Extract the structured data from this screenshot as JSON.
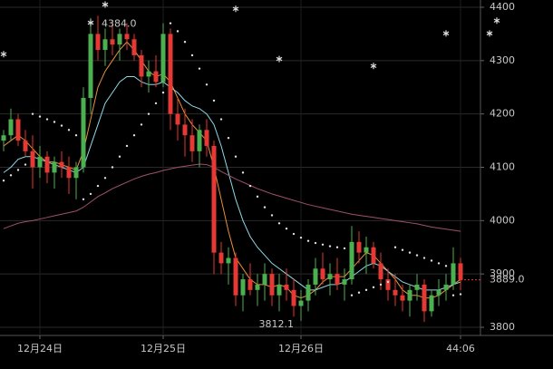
{
  "chart_data": {
    "type": "candlestick",
    "categories": [
      null,
      null,
      null,
      null,
      null,
      "12月24日",
      null,
      null,
      null,
      null,
      null,
      null,
      null,
      null,
      null,
      null,
      null,
      null,
      null,
      null,
      null,
      null,
      "12月25日",
      null,
      null,
      null,
      null,
      null,
      null,
      null,
      null,
      null,
      null,
      null,
      null,
      null,
      null,
      null,
      null,
      null,
      null,
      "12月26日",
      null,
      null,
      null,
      null,
      null,
      null,
      null,
      null,
      null,
      null,
      null,
      null,
      null,
      null,
      null,
      null,
      null,
      null,
      null,
      null,
      null,
      "44:06"
    ],
    "open": [
      4150,
      4160,
      4190,
      4150,
      4130,
      4100,
      4120,
      4090,
      4110,
      4100,
      4080,
      4100,
      4230,
      4350,
      4320,
      4340,
      4330,
      4350,
      4340,
      4310,
      4270,
      4280,
      4260,
      4350,
      4200,
      4180,
      4160,
      4130,
      4170,
      4140,
      3940,
      3920,
      3930,
      3860,
      3890,
      3870,
      3880,
      3900,
      3860,
      3880,
      3870,
      3840,
      3850,
      3880,
      3910,
      3890,
      3900,
      3880,
      3890,
      3960,
      3940,
      3950,
      3920,
      3890,
      3870,
      3860,
      3850,
      3870,
      3880,
      3830,
      3860,
      3870,
      3880,
      3920
    ],
    "high": [
      4170,
      4210,
      4200,
      4170,
      4160,
      4140,
      4130,
      4120,
      4130,
      4120,
      4110,
      4250,
      4380,
      4384,
      4360,
      4375,
      4360,
      4370,
      4350,
      4320,
      4300,
      4310,
      4370,
      4360,
      4230,
      4210,
      4190,
      4180,
      4190,
      4150,
      3960,
      3950,
      3940,
      3900,
      3920,
      3900,
      3920,
      3910,
      3900,
      3910,
      3890,
      3870,
      3890,
      3930,
      3940,
      3920,
      3930,
      3910,
      3990,
      3980,
      3970,
      3960,
      3940,
      3910,
      3900,
      3880,
      3880,
      3900,
      3890,
      3870,
      3890,
      3900,
      3950,
      3930
    ],
    "low": [
      4130,
      4150,
      4140,
      4120,
      4060,
      4080,
      4070,
      4060,
      4080,
      4050,
      4040,
      4090,
      4200,
      4300,
      4290,
      4310,
      4300,
      4320,
      4300,
      4250,
      4240,
      4250,
      4250,
      4170,
      4150,
      4120,
      4110,
      4100,
      4120,
      3900,
      3900,
      3880,
      3840,
      3830,
      3860,
      3840,
      3850,
      3840,
      3830,
      3850,
      3820,
      3812.1,
      3830,
      3860,
      3880,
      3860,
      3870,
      3850,
      3880,
      3920,
      3900,
      3910,
      3870,
      3850,
      3840,
      3830,
      3820,
      3850,
      3810,
      3820,
      3840,
      3850,
      3870,
      3870
    ],
    "close": [
      4160,
      4190,
      4150,
      4130,
      4100,
      4120,
      4090,
      4110,
      4100,
      4080,
      4100,
      4230,
      4350,
      4320,
      4340,
      4330,
      4350,
      4340,
      4310,
      4270,
      4280,
      4260,
      4350,
      4200,
      4180,
      4160,
      4130,
      4170,
      4140,
      3940,
      3920,
      3930,
      3860,
      3890,
      3870,
      3880,
      3900,
      3860,
      3880,
      3870,
      3840,
      3850,
      3880,
      3910,
      3890,
      3900,
      3880,
      3890,
      3960,
      3940,
      3950,
      3920,
      3890,
      3870,
      3860,
      3850,
      3870,
      3880,
      3830,
      3860,
      3870,
      3880,
      3920,
      3889
    ],
    "up_color": "#4caf50",
    "down_color": "#e53935",
    "lines": [
      {
        "color": "#e8913a",
        "values": [
          4140,
          4150,
          4160,
          4150,
          4135,
          4120,
          4110,
          4110,
          4105,
          4100,
          4095,
          4130,
          4190,
          4250,
          4280,
          4300,
          4320,
          4335,
          4320,
          4300,
          4280,
          4270,
          4275,
          4260,
          4230,
          4200,
          4180,
          4165,
          4150,
          4100,
          4040,
          3980,
          3930,
          3910,
          3890,
          3880,
          3880,
          3875,
          3880,
          3875,
          3860,
          3855,
          3860,
          3870,
          3885,
          3895,
          3895,
          3895,
          3910,
          3925,
          3940,
          3935,
          3920,
          3905,
          3890,
          3870,
          3860,
          3860,
          3855,
          3855,
          3860,
          3870,
          3880,
          3890
        ]
      },
      {
        "color": "#8fd8e8",
        "values": [
          4090,
          4100,
          4115,
          4120,
          4120,
          4115,
          4110,
          4105,
          4100,
          4095,
          4090,
          4100,
          4140,
          4180,
          4220,
          4240,
          4260,
          4270,
          4270,
          4260,
          4255,
          4255,
          4260,
          4250,
          4240,
          4225,
          4215,
          4210,
          4200,
          4180,
          4140,
          4090,
          4040,
          4000,
          3970,
          3950,
          3935,
          3920,
          3910,
          3900,
          3890,
          3880,
          3870,
          3870,
          3875,
          3880,
          3880,
          3885,
          3895,
          3905,
          3915,
          3920,
          3915,
          3905,
          3895,
          3885,
          3880,
          3875,
          3870,
          3870,
          3870,
          3875,
          3880,
          3885
        ]
      },
      {
        "color": "#a0506e",
        "values": [
          3985,
          3990,
          3995,
          3998,
          4000,
          4003,
          4006,
          4009,
          4012,
          4015,
          4018,
          4025,
          4035,
          4045,
          4052,
          4060,
          4066,
          4072,
          4078,
          4083,
          4087,
          4090,
          4094,
          4097,
          4100,
          4102,
          4104,
          4106,
          4105,
          4100,
          4092,
          4085,
          4078,
          4072,
          4066,
          4060,
          4055,
          4050,
          4046,
          4042,
          4038,
          4034,
          4030,
          4027,
          4024,
          4021,
          4018,
          4015,
          4012,
          4010,
          4008,
          4006,
          4004,
          4002,
          4000,
          3998,
          3996,
          3994,
          3991,
          3988,
          3986,
          3984,
          3982,
          3980
        ]
      }
    ],
    "sar": {
      "color": "#e0e0e0",
      "values": [
        4075,
        4085,
        4095,
        4105,
        4200,
        4195,
        4190,
        4185,
        4178,
        4170,
        4160,
        4040,
        4050,
        4065,
        4080,
        4100,
        4120,
        4140,
        4160,
        4180,
        4200,
        4220,
        4240,
        4370,
        4355,
        4335,
        4310,
        4285,
        4255,
        4225,
        4190,
        4155,
        4120,
        4090,
        4065,
        4045,
        4025,
        4010,
        3995,
        3985,
        3975,
        3968,
        3962,
        3958,
        3955,
        3952,
        3950,
        3948,
        3860,
        3865,
        3870,
        3875,
        3880,
        3885,
        3950,
        3945,
        3940,
        3935,
        3930,
        3925,
        3920,
        3915,
        3860,
        3862
      ]
    },
    "stars": [
      {
        "at": 0,
        "value": 4312
      },
      {
        "at": 12,
        "value": 4371
      },
      {
        "at": 14,
        "value": 4405
      },
      {
        "at": 32,
        "value": 4397
      },
      {
        "at": 38,
        "value": 4303
      },
      {
        "at": 51,
        "value": 4290
      },
      {
        "at": 61,
        "value": 4351
      },
      {
        "at": 67,
        "value": 4351
      },
      {
        "at": 68,
        "value": 4375
      }
    ],
    "high_annotation": {
      "at": 13,
      "value": 4384,
      "label": "4384.0"
    },
    "low_annotation": {
      "at": 41,
      "value": 3812.1,
      "label": "3812.1"
    },
    "last_price": {
      "value": 3889,
      "label": "3889.0",
      "color": "#e53935"
    },
    "ylim": [
      3800,
      4400
    ],
    "yticks": [
      3800,
      3900,
      4000,
      4100,
      4200,
      4300,
      4400
    ],
    "grid": true
  }
}
